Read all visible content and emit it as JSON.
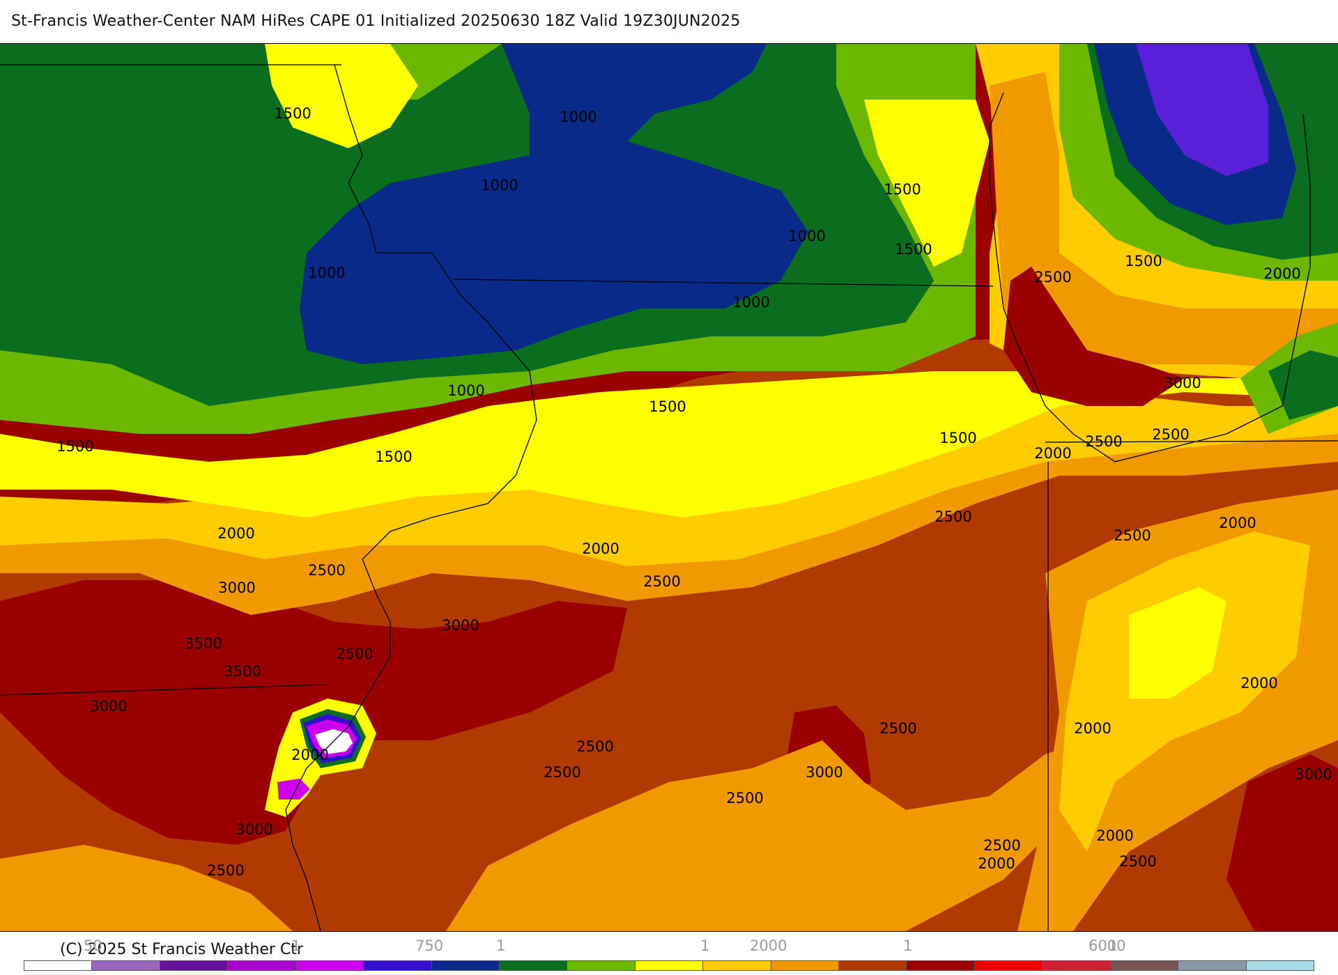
{
  "title": "St-Francis Weather-Center NAM HiRes CAPE  01 Initialized 20250630 18Z Valid 19Z30JUN2025",
  "copyright": "(C) 2025 St Francis Weather Ctr",
  "contour_labels": [
    {
      "text": "1500"
    },
    {
      "text": "1000"
    },
    {
      "text": "1000"
    },
    {
      "text": "1500"
    },
    {
      "text": "1000"
    },
    {
      "text": "1500"
    },
    {
      "text": "1000"
    },
    {
      "text": "1000"
    },
    {
      "text": "1500"
    },
    {
      "text": "2500"
    },
    {
      "text": "2000"
    },
    {
      "text": "1000"
    },
    {
      "text": "1500"
    },
    {
      "text": "1500"
    },
    {
      "text": "1500"
    },
    {
      "text": "3000"
    },
    {
      "text": "1500"
    },
    {
      "text": "2000"
    },
    {
      "text": "2500"
    },
    {
      "text": "2500"
    },
    {
      "text": "2000"
    },
    {
      "text": "2000"
    },
    {
      "text": "2500"
    },
    {
      "text": "2500"
    },
    {
      "text": "2000"
    },
    {
      "text": "2500"
    },
    {
      "text": "3000"
    },
    {
      "text": "2500"
    },
    {
      "text": "3000"
    },
    {
      "text": "3500"
    },
    {
      "text": "2500"
    },
    {
      "text": "3500"
    },
    {
      "text": "3000"
    },
    {
      "text": "2000"
    },
    {
      "text": "2000"
    },
    {
      "text": "2500"
    },
    {
      "text": "2500"
    },
    {
      "text": "2500"
    },
    {
      "text": "3000"
    },
    {
      "text": "2500"
    },
    {
      "text": "2000"
    },
    {
      "text": "3000"
    },
    {
      "text": "3000"
    },
    {
      "text": "2500"
    },
    {
      "text": "2500"
    },
    {
      "text": "2000"
    },
    {
      "text": "2000"
    },
    {
      "text": "2500"
    }
  ],
  "colorbar": {
    "colors": [
      "#ffffff",
      "#9966bb",
      "#66119a",
      "#aa00cc",
      "#cc00ee",
      "#3311cc",
      "#0a2a8a",
      "#0a6e1e",
      "#6cb800",
      "#ffff00",
      "#ffcc00",
      "#f09a00",
      "#b03a00",
      "#9a0000",
      "#ee0000",
      "#cc2233",
      "#7a5555",
      "#8899aa",
      "#a8dde8"
    ],
    "tick_labels": [
      {
        "text": "50"
      },
      {
        "text": "1"
      },
      {
        "text": "750"
      },
      {
        "text": "1"
      },
      {
        "text": "1"
      },
      {
        "text": "2000"
      },
      {
        "text": "1"
      },
      {
        "text": "6000"
      },
      {
        "text": "1"
      }
    ]
  },
  "colors": {
    "dark_blue": "#0a2a8a",
    "dark_green": "#0a6e1e",
    "light_green": "#6cb800",
    "yellow": "#ffff00",
    "gold": "#ffcc00",
    "orange": "#f09a00",
    "rust": "#b03a00",
    "dark_red": "#9a0000",
    "violet": "#5a1fd8",
    "magenta": "#cc00ee"
  }
}
